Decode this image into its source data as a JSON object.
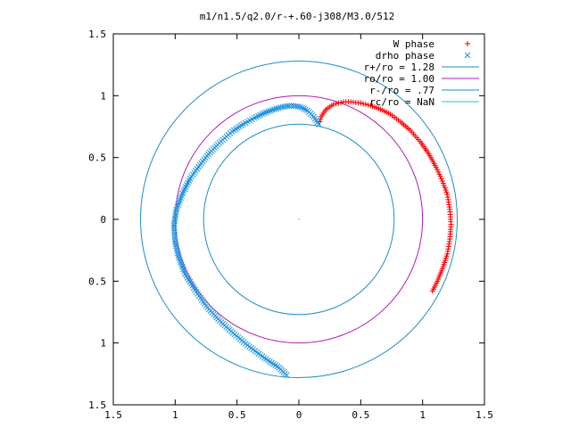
{
  "chart_data": {
    "type": "scatter",
    "title": "m1/n1.5/q2.0/r-+.60-j308/M3.0/512",
    "xlabel": "",
    "ylabel": "",
    "xlim": [
      -1.5,
      1.5
    ],
    "ylim": [
      -1.5,
      1.5
    ],
    "grid": false,
    "legend_position": "top-right",
    "x_ticks": [
      "1.5",
      "1",
      "0.5",
      "0",
      "0.5",
      "1",
      "1.5"
    ],
    "y_ticks": [
      "1.5",
      "1",
      "0.5",
      "0",
      "0.5",
      "1",
      "1.5"
    ],
    "circles": [
      {
        "name": "r+/ro = 1.28",
        "radius": 1.28,
        "color": "#1a8fc8"
      },
      {
        "name": "ro/ro = 1.00",
        "radius": 1.0,
        "color": "#b01ab0"
      },
      {
        "name": "r-/ro = .77",
        "radius": 0.77,
        "color": "#1a8fc8"
      },
      {
        "name": "rc/ro = NaN",
        "radius": null,
        "color": "#22c8c8"
      }
    ],
    "series": [
      {
        "name": "W phase",
        "marker": "plus",
        "color": "#ff0000",
        "points": [
          [
            0.17,
            0.79
          ],
          [
            0.18,
            0.83
          ],
          [
            0.2,
            0.86
          ],
          [
            0.22,
            0.89
          ],
          [
            0.25,
            0.91
          ],
          [
            0.28,
            0.93
          ],
          [
            0.32,
            0.94
          ],
          [
            0.36,
            0.95
          ],
          [
            0.42,
            0.95
          ],
          [
            0.5,
            0.94
          ],
          [
            0.58,
            0.92
          ],
          [
            0.66,
            0.89
          ],
          [
            0.74,
            0.85
          ],
          [
            0.82,
            0.79
          ],
          [
            0.9,
            0.72
          ],
          [
            0.98,
            0.63
          ],
          [
            1.05,
            0.53
          ],
          [
            1.11,
            0.42
          ],
          [
            1.16,
            0.31
          ],
          [
            1.2,
            0.2
          ],
          [
            1.22,
            0.08
          ],
          [
            1.23,
            -0.04
          ],
          [
            1.22,
            -0.16
          ],
          [
            1.2,
            -0.28
          ],
          [
            1.16,
            -0.4
          ],
          [
            1.12,
            -0.5
          ],
          [
            1.08,
            -0.58
          ]
        ]
      },
      {
        "name": "drho phase",
        "marker": "cross",
        "color": "#1e90e0",
        "points": [
          [
            0.16,
            0.77
          ],
          [
            0.12,
            0.83
          ],
          [
            0.07,
            0.88
          ],
          [
            0.01,
            0.91
          ],
          [
            -0.06,
            0.92
          ],
          [
            -0.13,
            0.91
          ],
          [
            -0.2,
            0.89
          ],
          [
            -0.28,
            0.86
          ],
          [
            -0.36,
            0.82
          ],
          [
            -0.45,
            0.77
          ],
          [
            -0.54,
            0.71
          ],
          [
            -0.63,
            0.63
          ],
          [
            -0.72,
            0.54
          ],
          [
            -0.8,
            0.44
          ],
          [
            -0.88,
            0.33
          ],
          [
            -0.94,
            0.21
          ],
          [
            -0.99,
            0.08
          ],
          [
            -1.01,
            -0.05
          ],
          [
            -1.0,
            -0.18
          ],
          [
            -0.97,
            -0.31
          ],
          [
            -0.92,
            -0.44
          ],
          [
            -0.84,
            -0.57
          ],
          [
            -0.75,
            -0.7
          ],
          [
            -0.64,
            -0.82
          ],
          [
            -0.52,
            -0.93
          ],
          [
            -0.4,
            -1.03
          ],
          [
            -0.28,
            -1.12
          ],
          [
            -0.16,
            -1.2
          ],
          [
            -0.1,
            -1.26
          ]
        ]
      }
    ]
  }
}
